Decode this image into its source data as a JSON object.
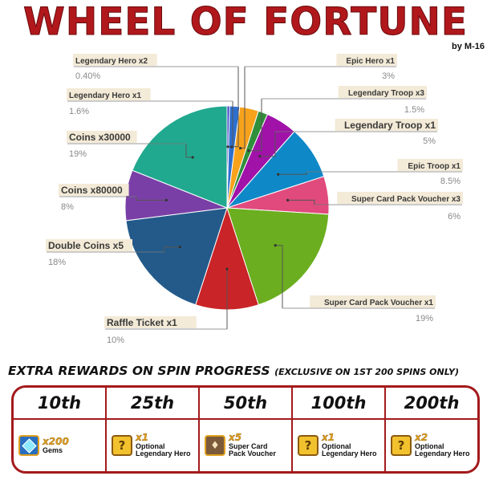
{
  "title": "WHEEL OF FORTUNE",
  "byline": "by M-16",
  "chart_data": {
    "type": "pie",
    "slices": [
      {
        "name": "Legendary Hero x2",
        "value": 0.4,
        "pct": "0.40%",
        "color": "#3d3ec4"
      },
      {
        "name": "Legendary Hero x1",
        "value": 1.6,
        "pct": "1.6%",
        "color": "#2d6fce"
      },
      {
        "name": "Epic Hero x1",
        "value": 3,
        "pct": "3%",
        "color": "#f7a21b"
      },
      {
        "name": "Legendary Troop x3",
        "value": 1.5,
        "pct": "1.5%",
        "color": "#2f8f3a"
      },
      {
        "name": "Legendary Troop x1",
        "value": 5,
        "pct": "5%",
        "color": "#a012a8"
      },
      {
        "name": "Epic Troop x1",
        "value": 8.5,
        "pct": "8.5%",
        "color": "#0f88c7"
      },
      {
        "name": "Super Card Pack Voucher x3",
        "value": 6,
        "pct": "6%",
        "color": "#e04a7d"
      },
      {
        "name": "Super Card Pack Voucher x1",
        "value": 19,
        "pct": "19%",
        "color": "#6bae1f"
      },
      {
        "name": "Raffle Ticket x1",
        "value": 10,
        "pct": "10%",
        "color": "#c92427"
      },
      {
        "name": "Double Coins x5",
        "value": 18,
        "pct": "18%",
        "color": "#235a8a"
      },
      {
        "name": "Coins x80000",
        "value": 8,
        "pct": "8%",
        "color": "#7a3fa7"
      },
      {
        "name": "Coins x30000",
        "value": 19,
        "pct": "19%",
        "color": "#21a98f"
      }
    ]
  },
  "extra_rewards": {
    "title": "EXTRA REWARDS ON SPIN PROGRESS",
    "subtitle": "(EXCLUSIVE ON 1ST 200 SPINS ONLY)",
    "milestones": [
      {
        "label": "10th",
        "qty": "x200",
        "name": "Gems",
        "icon": "gems-icon"
      },
      {
        "label": "25th",
        "qty": "x1",
        "name": "Optional Legendary Hero",
        "icon": "hero-box-icon"
      },
      {
        "label": "50th",
        "qty": "x5",
        "name": "Super Card Pack Voucher",
        "icon": "voucher-icon"
      },
      {
        "label": "100th",
        "qty": "x1",
        "name": "Optional Legendary Hero",
        "icon": "hero-box-icon"
      },
      {
        "label": "200th",
        "qty": "x2",
        "name": "Optional Legendary Hero",
        "icon": "hero-box-icon"
      }
    ]
  }
}
